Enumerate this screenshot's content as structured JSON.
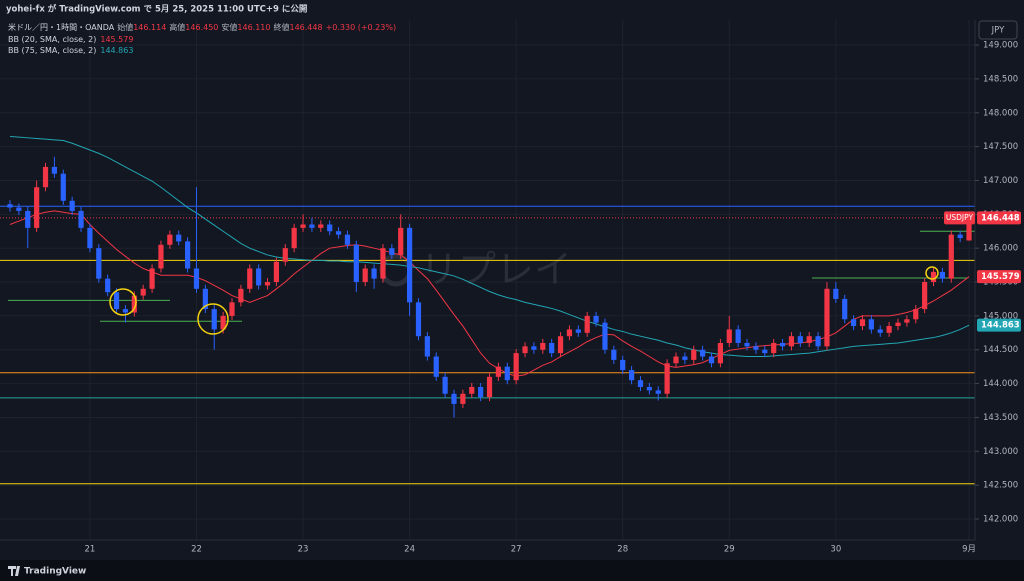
{
  "header": {
    "published": "yohei-fx が TradingView.com で 5月 25, 2025 11:00 UTC+9 に公開"
  },
  "chart_data": {
    "type": "candlestick",
    "symbol": "米ドル／円・1時間・OANDA",
    "legend": {
      "open_label": "始値",
      "open": "146.114",
      "high_label": "高値",
      "high": "146.450",
      "low_label": "安値",
      "low": "146.110",
      "close_label": "終値",
      "close": "146.448",
      "change": "+0.330 (+0.23%)"
    },
    "currency": "JPY",
    "symbol_tag": "USDJPY",
    "watermark": "リプレイ",
    "footer": "TradingView",
    "up_color": "#f23645",
    "down_color": "#2962ff",
    "ylim": [
      141.69,
      149.37
    ],
    "yticks": [
      {
        "value": 149,
        "label": "149.000"
      },
      {
        "value": 148.5,
        "label": "148.500"
      },
      {
        "value": 148,
        "label": "148.000"
      },
      {
        "value": 147.5,
        "label": "147.500"
      },
      {
        "value": 147,
        "label": "147.000"
      },
      {
        "value": 146.5,
        "label": "146.500"
      },
      {
        "value": 146,
        "label": "146.000"
      },
      {
        "value": 145.5,
        "label": "145.500"
      },
      {
        "value": 145,
        "label": "145.000"
      },
      {
        "value": 144.5,
        "label": "144.500"
      },
      {
        "value": 144,
        "label": "144.000"
      },
      {
        "value": 143.5,
        "label": "143.500"
      },
      {
        "value": 143,
        "label": "143.000"
      },
      {
        "value": 142.5,
        "label": "142.500"
      },
      {
        "value": 142,
        "label": "142.000"
      }
    ],
    "grid": true,
    "categories": [
      null,
      null,
      null,
      null,
      null,
      null,
      null,
      null,
      null,
      "21",
      null,
      null,
      null,
      null,
      null,
      null,
      null,
      null,
      null,
      null,
      null,
      "22",
      null,
      null,
      null,
      null,
      null,
      null,
      null,
      null,
      null,
      null,
      null,
      "23",
      null,
      null,
      null,
      null,
      null,
      null,
      null,
      null,
      null,
      null,
      null,
      "24",
      null,
      null,
      null,
      null,
      null,
      null,
      null,
      null,
      null,
      null,
      null,
      "27",
      null,
      null,
      null,
      null,
      null,
      null,
      null,
      null,
      null,
      null,
      null,
      "28",
      null,
      null,
      null,
      null,
      null,
      null,
      null,
      null,
      null,
      null,
      null,
      "29",
      null,
      null,
      null,
      null,
      null,
      null,
      null,
      null,
      null,
      null,
      null,
      "30",
      null,
      null,
      null,
      null,
      null,
      null,
      null,
      null,
      null,
      null,
      null,
      null,
      null,
      null,
      "9月"
    ],
    "open": [
      146.65,
      146.6,
      146.55,
      146.3,
      146.9,
      147.2,
      147.1,
      146.7,
      146.55,
      146.3,
      146.0,
      145.55,
      145.35,
      145.1,
      145.05,
      145.3,
      145.4,
      145.7,
      146.05,
      146.2,
      146.1,
      145.7,
      145.4,
      145.1,
      144.8,
      145.0,
      145.2,
      145.4,
      145.7,
      145.45,
      145.5,
      145.8,
      146.0,
      146.3,
      146.35,
      146.3,
      146.35,
      146.25,
      146.2,
      146.05,
      145.5,
      145.7,
      145.55,
      146.0,
      145.9,
      146.3,
      145.2,
      144.7,
      144.4,
      144.1,
      143.85,
      143.7,
      143.85,
      143.95,
      143.8,
      144.1,
      144.25,
      144.05,
      144.45,
      144.55,
      144.5,
      144.6,
      144.45,
      144.7,
      144.8,
      144.75,
      145.0,
      144.9,
      144.5,
      144.35,
      144.2,
      144.05,
      143.95,
      143.9,
      143.85,
      144.3,
      144.4,
      144.35,
      144.5,
      144.4,
      144.3,
      144.6,
      144.8,
      144.6,
      144.55,
      144.5,
      144.45,
      144.6,
      144.55,
      144.7,
      144.6,
      144.7,
      144.55,
      145.4,
      145.25,
      144.95,
      144.85,
      144.95,
      144.8,
      144.75,
      144.85,
      144.9,
      144.95,
      145.1,
      145.5,
      145.65,
      145.55,
      146.2,
      146.114
    ],
    "high": [
      146.71,
      146.66,
      146.61,
      147.0,
      147.26,
      147.35,
      147.16,
      146.76,
      146.61,
      146.36,
      146.06,
      145.61,
      145.41,
      145.16,
      145.36,
      145.46,
      145.76,
      146.11,
      146.26,
      146.26,
      146.16,
      146.9,
      145.46,
      145.16,
      145.06,
      145.26,
      145.46,
      145.76,
      145.76,
      145.56,
      145.86,
      146.06,
      146.36,
      146.5,
      146.45,
      146.41,
      146.41,
      146.31,
      146.26,
      146.11,
      145.76,
      145.76,
      146.06,
      146.06,
      146.5,
      146.36,
      145.26,
      144.76,
      144.46,
      144.16,
      143.91,
      143.91,
      144.01,
      144.01,
      144.16,
      144.31,
      144.31,
      144.51,
      144.61,
      144.61,
      144.66,
      144.66,
      144.76,
      144.86,
      144.86,
      145.06,
      145.06,
      144.96,
      144.56,
      144.41,
      144.26,
      144.11,
      144.01,
      143.96,
      144.36,
      144.46,
      144.46,
      144.56,
      144.56,
      144.46,
      144.66,
      145.0,
      144.86,
      144.66,
      144.61,
      144.56,
      144.66,
      144.66,
      144.76,
      144.76,
      144.76,
      144.76,
      145.5,
      145.5,
      145.31,
      145.01,
      145.01,
      145.01,
      144.86,
      144.91,
      144.96,
      145.01,
      145.16,
      145.56,
      145.71,
      145.71,
      146.26,
      146.26,
      146.45
    ],
    "low": [
      146.54,
      146.49,
      146.0,
      146.24,
      146.84,
      147.04,
      146.64,
      146.49,
      146.24,
      145.94,
      145.49,
      145.29,
      145.04,
      144.9,
      144.99,
      145.24,
      145.34,
      145.64,
      145.99,
      146.04,
      145.64,
      145.34,
      145.04,
      144.5,
      144.74,
      144.94,
      145.14,
      145.34,
      145.39,
      145.39,
      145.44,
      145.74,
      145.94,
      146.24,
      146.24,
      146.24,
      146.19,
      146.14,
      145.99,
      145.35,
      145.44,
      145.4,
      145.49,
      145.84,
      145.84,
      145.0,
      144.64,
      144.34,
      144.04,
      143.79,
      143.5,
      143.64,
      143.79,
      143.74,
      143.74,
      144.04,
      143.99,
      143.99,
      144.39,
      144.44,
      144.44,
      144.39,
      144.39,
      144.64,
      144.69,
      144.69,
      144.84,
      144.44,
      144.29,
      144.14,
      143.99,
      143.89,
      143.84,
      143.75,
      143.79,
      144.24,
      144.29,
      144.29,
      144.34,
      144.24,
      144.24,
      144.54,
      144.54,
      144.49,
      144.44,
      144.39,
      144.39,
      144.49,
      144.49,
      144.54,
      144.54,
      144.49,
      144.49,
      145.19,
      144.89,
      144.79,
      144.79,
      144.74,
      144.69,
      144.69,
      144.79,
      144.84,
      144.89,
      145.04,
      145.44,
      145.49,
      145.49,
      146.09,
      146.11
    ],
    "close": [
      146.6,
      146.55,
      146.3,
      146.9,
      147.2,
      147.1,
      146.7,
      146.55,
      146.3,
      146.0,
      145.55,
      145.35,
      145.1,
      145.05,
      145.3,
      145.4,
      145.7,
      146.05,
      146.2,
      146.1,
      145.7,
      145.4,
      145.1,
      144.8,
      145.0,
      145.2,
      145.4,
      145.7,
      145.45,
      145.5,
      145.8,
      146.0,
      146.3,
      146.35,
      146.3,
      146.35,
      146.25,
      146.2,
      146.05,
      145.5,
      145.7,
      145.55,
      146.0,
      145.9,
      146.3,
      145.2,
      144.7,
      144.4,
      144.1,
      143.85,
      143.7,
      143.85,
      143.95,
      143.8,
      144.1,
      144.25,
      144.05,
      144.45,
      144.55,
      144.5,
      144.6,
      144.45,
      144.7,
      144.8,
      144.75,
      145.0,
      144.9,
      144.5,
      144.35,
      144.2,
      144.05,
      143.95,
      143.9,
      143.85,
      144.3,
      144.4,
      144.35,
      144.5,
      144.4,
      144.3,
      144.6,
      144.8,
      144.6,
      144.55,
      144.5,
      144.45,
      144.6,
      144.55,
      144.7,
      144.6,
      144.7,
      144.55,
      145.4,
      145.25,
      144.95,
      144.85,
      144.95,
      144.8,
      144.75,
      144.85,
      144.9,
      144.95,
      145.1,
      145.5,
      145.65,
      145.55,
      146.2,
      146.15,
      146.448
    ],
    "bb20": {
      "name": "BB (20, SMA, close, 2)",
      "color": "#f23645",
      "values": [
        146.35,
        146.4,
        146.45,
        146.5,
        146.53,
        146.55,
        146.53,
        146.51,
        146.5,
        146.35,
        146.22,
        146.1,
        145.98,
        145.88,
        145.78,
        145.7,
        145.65,
        145.6,
        145.6,
        145.6,
        145.6,
        145.57,
        145.52,
        145.45,
        145.38,
        145.3,
        145.25,
        145.2,
        145.25,
        145.3,
        145.4,
        145.5,
        145.62,
        145.72,
        145.82,
        145.92,
        146.0,
        146.02,
        146.04,
        146.05,
        146.03,
        146.0,
        145.97,
        145.93,
        145.9,
        145.8,
        145.67,
        145.55,
        145.38,
        145.2,
        145.02,
        144.85,
        144.65,
        144.45,
        144.3,
        144.22,
        144.15,
        144.11,
        144.13,
        144.2,
        144.27,
        144.32,
        144.4,
        144.47,
        144.54,
        144.62,
        144.68,
        144.73,
        144.72,
        144.63,
        144.55,
        144.48,
        144.4,
        144.32,
        144.26,
        144.24,
        144.26,
        144.28,
        144.31,
        144.37,
        144.43,
        144.49,
        144.51,
        144.53,
        144.55,
        144.56,
        144.57,
        144.58,
        144.59,
        144.6,
        144.62,
        144.65,
        144.69,
        144.75,
        144.85,
        144.95,
        145.0,
        145.0,
        145.0,
        145.0,
        145.02,
        145.05,
        145.09,
        145.15,
        145.22,
        145.3,
        145.38,
        145.48,
        145.579
      ]
    },
    "bb75": {
      "name": "BB (75, SMA, close, 2)",
      "color": "#22a6b3",
      "values": [
        147.65,
        147.64,
        147.63,
        147.62,
        147.61,
        147.6,
        147.59,
        147.55,
        147.5,
        147.45,
        147.4,
        147.34,
        147.27,
        147.2,
        147.13,
        147.06,
        146.99,
        146.9,
        146.8,
        146.7,
        146.6,
        146.52,
        146.43,
        146.34,
        146.25,
        146.16,
        146.07,
        146.0,
        145.95,
        145.9,
        145.87,
        145.85,
        145.84,
        145.83,
        145.82,
        145.82,
        145.81,
        145.81,
        145.8,
        145.8,
        145.79,
        145.78,
        145.77,
        145.76,
        145.75,
        145.73,
        145.71,
        145.68,
        145.65,
        145.62,
        145.59,
        145.54,
        145.48,
        145.42,
        145.36,
        145.31,
        145.27,
        145.24,
        145.2,
        145.17,
        145.14,
        145.11,
        145.07,
        145.02,
        144.97,
        144.92,
        144.88,
        144.84,
        144.8,
        144.77,
        144.73,
        144.7,
        144.67,
        144.64,
        144.6,
        144.57,
        144.53,
        144.5,
        144.47,
        144.45,
        144.43,
        144.42,
        144.41,
        144.4,
        144.4,
        144.4,
        144.41,
        144.42,
        144.43,
        144.44,
        144.45,
        144.47,
        144.49,
        144.51,
        144.53,
        144.55,
        144.56,
        144.57,
        144.58,
        144.59,
        144.6,
        144.62,
        144.64,
        144.66,
        144.68,
        144.71,
        144.75,
        144.8,
        144.863
      ]
    },
    "levels": [
      {
        "value": 146.62,
        "color": "#2962ff"
      },
      {
        "value": 145.82,
        "color": "#f5d20f"
      },
      {
        "value": 144.16,
        "color": "#f7931a"
      },
      {
        "value": 143.79,
        "color": "#26a69a"
      },
      {
        "value": 142.52,
        "color": "#f5d20f"
      },
      {
        "value": 145.23,
        "color": "#4caf50"
      },
      {
        "value": 144.92,
        "color": "#4caf50"
      },
      {
        "value": 145.56,
        "color": "#4caf50"
      },
      {
        "value": 146.25,
        "color": "#4caf50"
      }
    ]
  }
}
